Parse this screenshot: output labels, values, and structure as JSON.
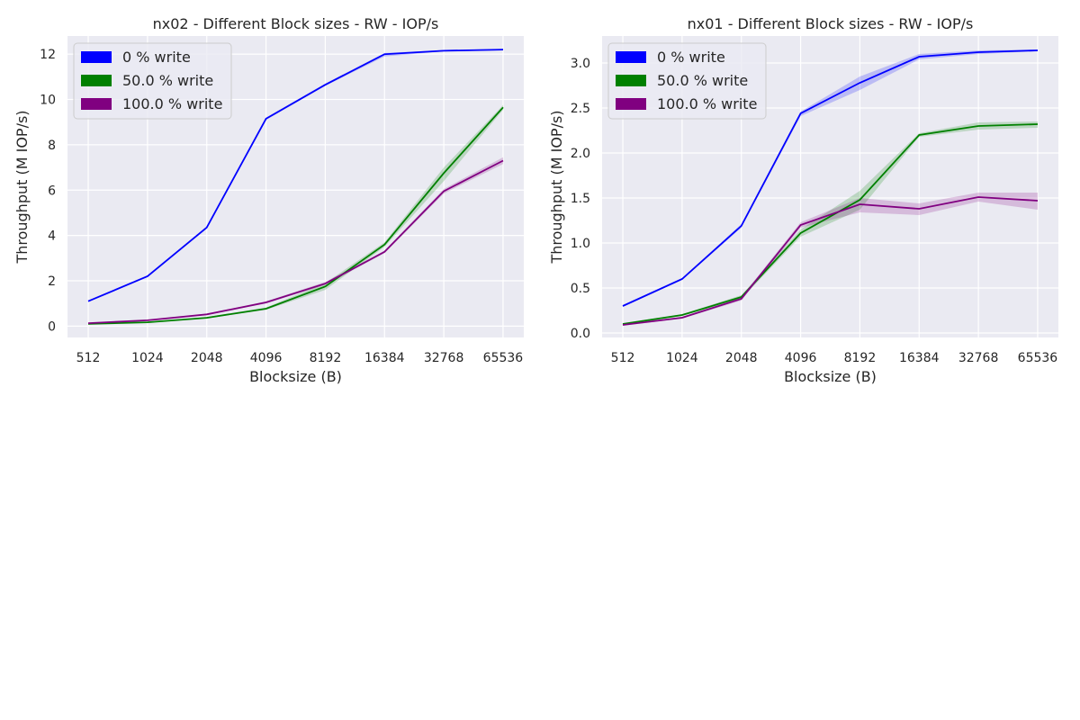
{
  "chart_data": [
    {
      "type": "line",
      "title": "nx02 - Different Block sizes - RW - IOP/s",
      "xlabel": "Blocksize (B)",
      "ylabel": "Throughput (M IOP/s)",
      "categories": [
        "512",
        "1024",
        "2048",
        "4096",
        "8192",
        "16384",
        "32768",
        "65536"
      ],
      "ylim": [
        -0.5,
        12.8
      ],
      "yticks": [
        "0",
        "2",
        "4",
        "6",
        "8",
        "10",
        "12"
      ],
      "ytick_values": [
        0,
        2,
        4,
        6,
        8,
        10,
        12
      ],
      "grid": true,
      "legend_position": "top-left",
      "series": [
        {
          "name": "0 % write",
          "color": "#0000ff",
          "values": [
            1.1,
            2.2,
            4.35,
            9.15,
            10.65,
            12.0,
            12.15,
            12.2
          ],
          "lower": [
            1.08,
            2.18,
            4.3,
            9.1,
            10.6,
            11.9,
            12.12,
            12.17
          ],
          "upper": [
            1.12,
            2.22,
            4.4,
            9.2,
            10.7,
            12.05,
            12.18,
            12.23
          ]
        },
        {
          "name": "50.0 % write",
          "color": "#008000",
          "values": [
            0.1,
            0.17,
            0.37,
            0.77,
            1.75,
            3.6,
            6.75,
            9.65
          ],
          "lower": [
            0.09,
            0.15,
            0.34,
            0.72,
            1.6,
            3.5,
            6.4,
            9.55
          ],
          "upper": [
            0.11,
            0.19,
            0.4,
            0.82,
            1.9,
            3.7,
            7.0,
            9.75
          ]
        },
        {
          "name": "100.0 % write",
          "color": "#800080",
          "values": [
            0.13,
            0.26,
            0.52,
            1.05,
            1.88,
            3.28,
            5.95,
            7.3
          ],
          "lower": [
            0.11,
            0.24,
            0.5,
            1.0,
            1.82,
            3.22,
            5.85,
            7.15
          ],
          "upper": [
            0.15,
            0.28,
            0.55,
            1.1,
            1.95,
            3.33,
            6.05,
            7.45
          ]
        }
      ]
    },
    {
      "type": "line",
      "title": "nx01 - Different Block sizes - RW - IOP/s",
      "xlabel": "Blocksize (B)",
      "ylabel": "Throughput (M IOP/s)",
      "categories": [
        "512",
        "1024",
        "2048",
        "4096",
        "8192",
        "16384",
        "32768",
        "65536"
      ],
      "ylim": [
        -0.05,
        3.3
      ],
      "yticks": [
        "0.0",
        "0.5",
        "1.0",
        "1.5",
        "2.0",
        "2.5",
        "3.0"
      ],
      "ytick_values": [
        0,
        0.5,
        1.0,
        1.5,
        2.0,
        2.5,
        3.0
      ],
      "grid": true,
      "legend_position": "top-left",
      "series": [
        {
          "name": "0 % write",
          "color": "#0000ff",
          "values": [
            0.3,
            0.6,
            1.19,
            2.44,
            2.78,
            3.07,
            3.12,
            3.14
          ],
          "lower": [
            0.29,
            0.59,
            1.17,
            2.41,
            2.7,
            3.04,
            3.1,
            3.13
          ],
          "upper": [
            0.31,
            0.61,
            1.21,
            2.46,
            2.85,
            3.1,
            3.14,
            3.15
          ]
        },
        {
          "name": "50.0 % write",
          "color": "#008000",
          "values": [
            0.1,
            0.2,
            0.4,
            1.11,
            1.48,
            2.2,
            2.3,
            2.32
          ],
          "lower": [
            0.09,
            0.19,
            0.38,
            1.07,
            1.37,
            2.18,
            2.26,
            2.28
          ],
          "upper": [
            0.11,
            0.21,
            0.42,
            1.15,
            1.58,
            2.22,
            2.34,
            2.35
          ]
        },
        {
          "name": "100.0 % write",
          "color": "#800080",
          "values": [
            0.09,
            0.17,
            0.38,
            1.2,
            1.43,
            1.38,
            1.51,
            1.47
          ],
          "lower": [
            0.08,
            0.16,
            0.36,
            1.17,
            1.34,
            1.31,
            1.46,
            1.37
          ],
          "upper": [
            0.1,
            0.18,
            0.4,
            1.23,
            1.5,
            1.44,
            1.56,
            1.56
          ]
        }
      ]
    }
  ]
}
